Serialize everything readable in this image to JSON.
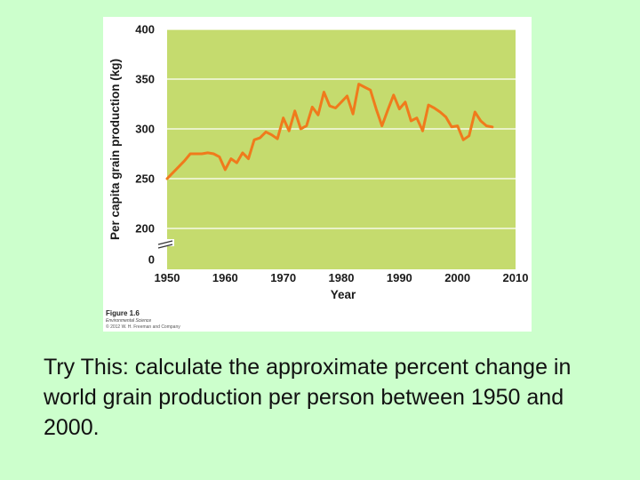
{
  "chart_data": {
    "type": "line",
    "title": "",
    "xlabel": "Year",
    "ylabel": "Per capita grain production (kg)",
    "xlim": [
      1950,
      2010
    ],
    "ylim": [
      0,
      400
    ],
    "axis_break": "between 0 and 200",
    "x_ticks": [
      "1950",
      "1960",
      "1970",
      "1980",
      "1990",
      "2000",
      "2010"
    ],
    "y_ticks": [
      "400",
      "350",
      "300",
      "250",
      "200",
      "0"
    ],
    "y_tick_values": [
      400,
      350,
      300,
      250,
      200
    ],
    "grid": true,
    "background_color": "#c5db6e",
    "line_color": "#f07a1c",
    "series": [
      {
        "name": "Per capita grain production",
        "x": [
          1950,
          1951,
          1952,
          1953,
          1954,
          1955,
          1956,
          1957,
          1958,
          1959,
          1960,
          1961,
          1962,
          1963,
          1964,
          1965,
          1966,
          1967,
          1968,
          1969,
          1970,
          1971,
          1972,
          1973,
          1974,
          1975,
          1976,
          1977,
          1978,
          1979,
          1980,
          1981,
          1982,
          1983,
          1984,
          1985,
          1986,
          1987,
          1988,
          1989,
          1990,
          1991,
          1992,
          1993,
          1994,
          1995,
          1996,
          1997,
          1998,
          1999,
          2000,
          2001,
          2002,
          2003,
          2004,
          2005,
          2006
        ],
        "values": [
          250,
          256,
          262,
          268,
          275,
          275,
          275,
          276,
          275,
          272,
          259,
          270,
          266,
          276,
          270,
          289,
          291,
          297,
          294,
          290,
          311,
          298,
          318,
          300,
          303,
          322,
          314,
          337,
          323,
          321,
          327,
          333,
          315,
          345,
          342,
          339,
          320,
          303,
          319,
          334,
          320,
          327,
          308,
          311,
          298,
          324,
          321,
          317,
          312,
          302,
          303,
          289,
          293,
          317,
          308,
          303,
          302
        ]
      }
    ]
  },
  "caption": {
    "figure_label": "Figure 1.6",
    "book_title": "Environmental Science",
    "copyright": "© 2012 W. H. Freeman and Company"
  },
  "question": {
    "text": "Try This: calculate the approximate percent change in world grain production per person between 1950 and 2000."
  }
}
